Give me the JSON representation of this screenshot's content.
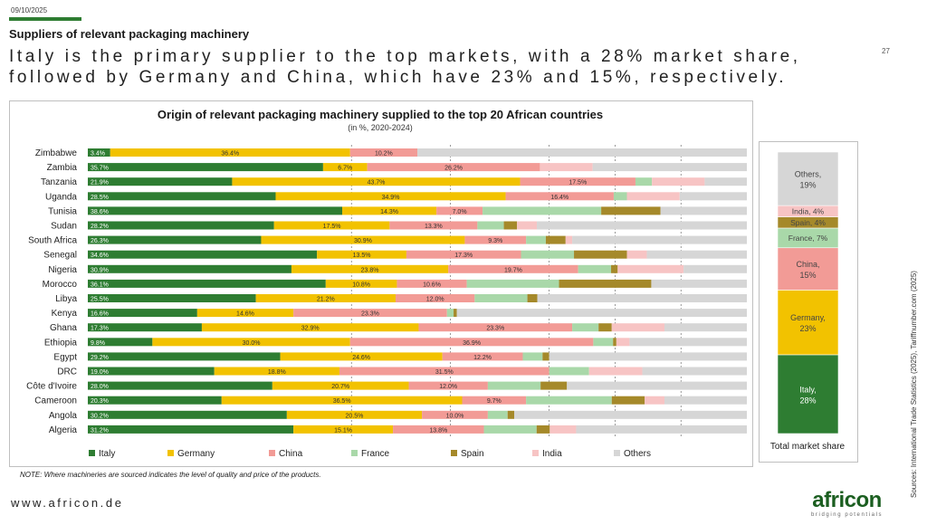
{
  "header": {
    "date": "09/10/2025",
    "section_title": "Suppliers of relevant packaging machinery",
    "headline": "Italy is the primary supplier to the top markets, with a 28% market share, followed by Germany and China, which have 23% and 15%, respectively.",
    "page_number": "27"
  },
  "colors": {
    "Italy": "#2e7d32",
    "Germany": "#f2c200",
    "China": "#f29b96",
    "France": "#a9d8a9",
    "Spain": "#a5892a",
    "India": "#f7c4c4",
    "Others": "#d6d6d6"
  },
  "chart_data": [
    {
      "type": "bar",
      "orientation": "horizontal",
      "stacked": true,
      "title": "Origin of relevant packaging machinery supplied to the top 20 African countries",
      "subtitle": "(in %, 2020-2024)",
      "categories": [
        "Zimbabwe",
        "Zambia",
        "Tanzania",
        "Uganda",
        "Tunisia",
        "Sudan",
        "South Africa",
        "Senegal",
        "Nigeria",
        "Morocco",
        "Libya",
        "Kenya",
        "Ghana",
        "Ethiopia",
        "Egypt",
        "DRC",
        "Côte d'Ivoire",
        "Cameroon",
        "Angola",
        "Algeria"
      ],
      "series": [
        {
          "name": "Italy",
          "values": [
            3.4,
            35.7,
            21.9,
            28.5,
            38.6,
            28.2,
            26.3,
            34.6,
            30.9,
            36.1,
            25.5,
            16.6,
            17.3,
            9.8,
            29.2,
            19.0,
            28.0,
            20.3,
            30.2,
            31.2
          ]
        },
        {
          "name": "Germany",
          "values": [
            36.4,
            6.7,
            43.7,
            34.9,
            14.3,
            17.5,
            30.9,
            13.5,
            23.8,
            10.8,
            21.2,
            14.6,
            32.9,
            30.0,
            24.6,
            18.8,
            20.7,
            36.5,
            20.5,
            15.1
          ]
        },
        {
          "name": "China",
          "values": [
            10.2,
            26.2,
            17.5,
            16.4,
            7.0,
            13.3,
            9.3,
            17.3,
            19.7,
            10.6,
            12.0,
            23.3,
            23.3,
            36.9,
            12.2,
            31.5,
            12.0,
            9.7,
            10.0,
            13.8
          ]
        },
        {
          "name": "France",
          "values": [
            0,
            0,
            2.5,
            2,
            18,
            4,
            3,
            8,
            5,
            14,
            8,
            1,
            4,
            3,
            3,
            6,
            8,
            13,
            3,
            8
          ]
        },
        {
          "name": "Spain",
          "values": [
            0,
            0,
            0,
            0,
            9,
            2,
            3,
            8,
            1,
            14,
            1.5,
            0.5,
            2,
            0.5,
            1,
            0,
            4,
            5,
            1,
            2
          ]
        },
        {
          "name": "India",
          "values": [
            0,
            8,
            8,
            8,
            0,
            3,
            1,
            3,
            10,
            0,
            0,
            0,
            8,
            2,
            0,
            8,
            0,
            3,
            0,
            4
          ]
        },
        {
          "name": "Others",
          "values": [
            50,
            23.4,
            6.4,
            10.2,
            13.1,
            31.8,
            26.5,
            15.1,
            9.6,
            14.5,
            31.8,
            44,
            12.5,
            17.8,
            30,
            15.7,
            27.3,
            12.5,
            35.3,
            25.9
          ]
        }
      ],
      "value_labels": {
        "Italy": [
          "3.4%",
          "35.7%",
          "21.9%",
          "28.5%",
          "38.6%",
          "28.2%",
          "26.3%",
          "34.6%",
          "30.9%",
          "36.1%",
          "25.5%",
          "16.6%",
          "17.3%",
          "9.8%",
          "29.2%",
          "19.0%",
          "28.0%",
          "20.3%",
          "30.2%",
          "31.2%"
        ],
        "Germany": [
          "36.4%",
          "6.7%",
          "43.7%",
          "34.9%",
          "14.3%",
          "17.5%",
          "30.9%",
          "13.5%",
          "23.8%",
          "10.8%",
          "21.2%",
          "14.6%",
          "32.9%",
          "30.0%",
          "24.6%",
          "18.8%",
          "20.7%",
          "36.5%",
          "20.5%",
          "15.1%"
        ],
        "China": [
          "10.2%",
          "26.2%",
          "17.5%",
          "16.4%",
          "7.0%",
          "13.3%",
          "9.3%",
          "17.3%",
          "19.7%",
          "10.6%",
          "12.0%",
          "23.3%",
          "23.3%",
          "36.9%",
          "12.2%",
          "31.5%",
          "12.0%",
          "9.7%",
          "10.0%",
          "13.8%"
        ]
      },
      "xlim": [
        0,
        100
      ],
      "legend": [
        "Italy",
        "Germany",
        "China",
        "France",
        "Spain",
        "India",
        "Others"
      ],
      "legend_position": "bottom"
    },
    {
      "type": "bar",
      "stacked": true,
      "title": "Total market share",
      "segments": [
        {
          "name": "Italy",
          "value": 28,
          "label": "Italy, 28%"
        },
        {
          "name": "Germany",
          "value": 23,
          "label": "Germany, 23%"
        },
        {
          "name": "China",
          "value": 15,
          "label": "China, 15%"
        },
        {
          "name": "France",
          "value": 7,
          "label": "France, 7%"
        },
        {
          "name": "Spain",
          "value": 4,
          "label": "Spain, 4%"
        },
        {
          "name": "India",
          "value": 4,
          "label": "India, 4%"
        },
        {
          "name": "Others",
          "value": 19,
          "label": "Others, 19%"
        }
      ]
    }
  ],
  "footer": {
    "note": "NOTE: Where machineries are sourced indicates the level of quality and price of the products.",
    "website": "www.africon.de",
    "sources": "Sources: International Trade Statistics (2025), Tariffnumber.com (2025)",
    "logo_word": "africon",
    "logo_tagline": "bridging potentials"
  }
}
